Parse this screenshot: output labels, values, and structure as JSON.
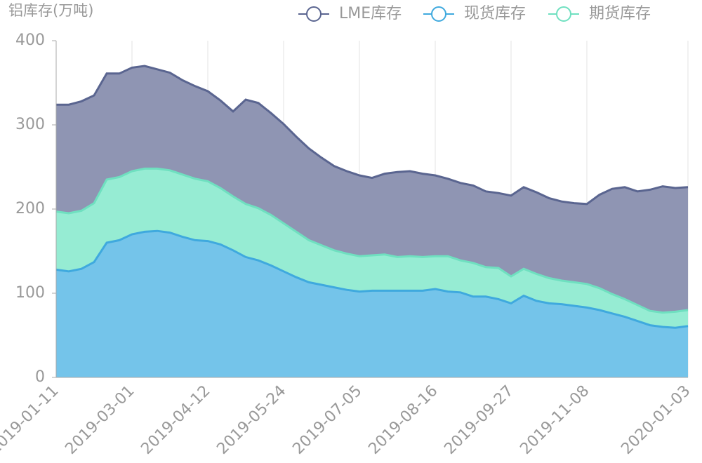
{
  "chart_data": {
    "type": "stacked_area",
    "y_axis_title": "铝库存(万吨)",
    "categories": [
      "2019-01-11",
      null,
      null,
      null,
      null,
      null,
      "2019-03-01",
      null,
      null,
      null,
      null,
      null,
      "2019-04-12",
      null,
      null,
      null,
      null,
      null,
      "2019-05-24",
      null,
      null,
      null,
      null,
      null,
      "2019-07-05",
      null,
      null,
      null,
      null,
      null,
      "2019-08-16",
      null,
      null,
      null,
      null,
      null,
      "2019-09-27",
      null,
      null,
      null,
      null,
      null,
      "2019-11-08",
      null,
      null,
      null,
      null,
      null,
      null,
      null,
      "2020-01-03"
    ],
    "series": [
      {
        "name": "LME库存",
        "color": "#5a6590",
        "fill": "#8f95b3",
        "values": [
          127,
          129,
          130,
          128,
          126,
          123,
          123,
          122,
          118,
          116,
          112,
          110,
          107,
          104,
          101,
          124,
          125,
          121,
          118,
          113,
          109,
          104,
          100,
          98,
          96,
          92,
          96,
          101,
          101,
          99,
          96,
          92,
          92,
          92,
          90,
          89,
          96,
          97,
          97,
          95,
          94,
          94,
          95,
          111,
          125,
          133,
          135,
          144,
          150,
          147,
          146
        ]
      },
      {
        "name": "现货库存",
        "color": "#3fa9de",
        "fill": "#74c4ea",
        "values": [
          128,
          126,
          129,
          137,
          160,
          163,
          170,
          173,
          174,
          172,
          167,
          163,
          162,
          158,
          151,
          143,
          139,
          133,
          126,
          119,
          113,
          110,
          107,
          104,
          102,
          103,
          103,
          103,
          103,
          103,
          105,
          102,
          101,
          96,
          96,
          93,
          88,
          97,
          91,
          88,
          87,
          85,
          83,
          80,
          76,
          72,
          67,
          62,
          60,
          59,
          61
        ]
      },
      {
        "name": "期货库存",
        "color": "#6fe0c0",
        "fill": "#96ecd3",
        "values": [
          69,
          69,
          69,
          70,
          75,
          75,
          75,
          75,
          74,
          74,
          74,
          73,
          71,
          67,
          64,
          63,
          62,
          60,
          57,
          54,
          50,
          47,
          44,
          43,
          42,
          42,
          43,
          40,
          41,
          40,
          39,
          42,
          38,
          40,
          35,
          37,
          32,
          32,
          32,
          30,
          28,
          28,
          28,
          26,
          23,
          21,
          19,
          17,
          17,
          19,
          19
        ]
      }
    ],
    "stack_order": [
      1,
      2,
      0
    ],
    "ylim": [
      0,
      400
    ],
    "yticks": [
      0,
      100,
      200,
      300,
      400
    ],
    "grid": true
  }
}
